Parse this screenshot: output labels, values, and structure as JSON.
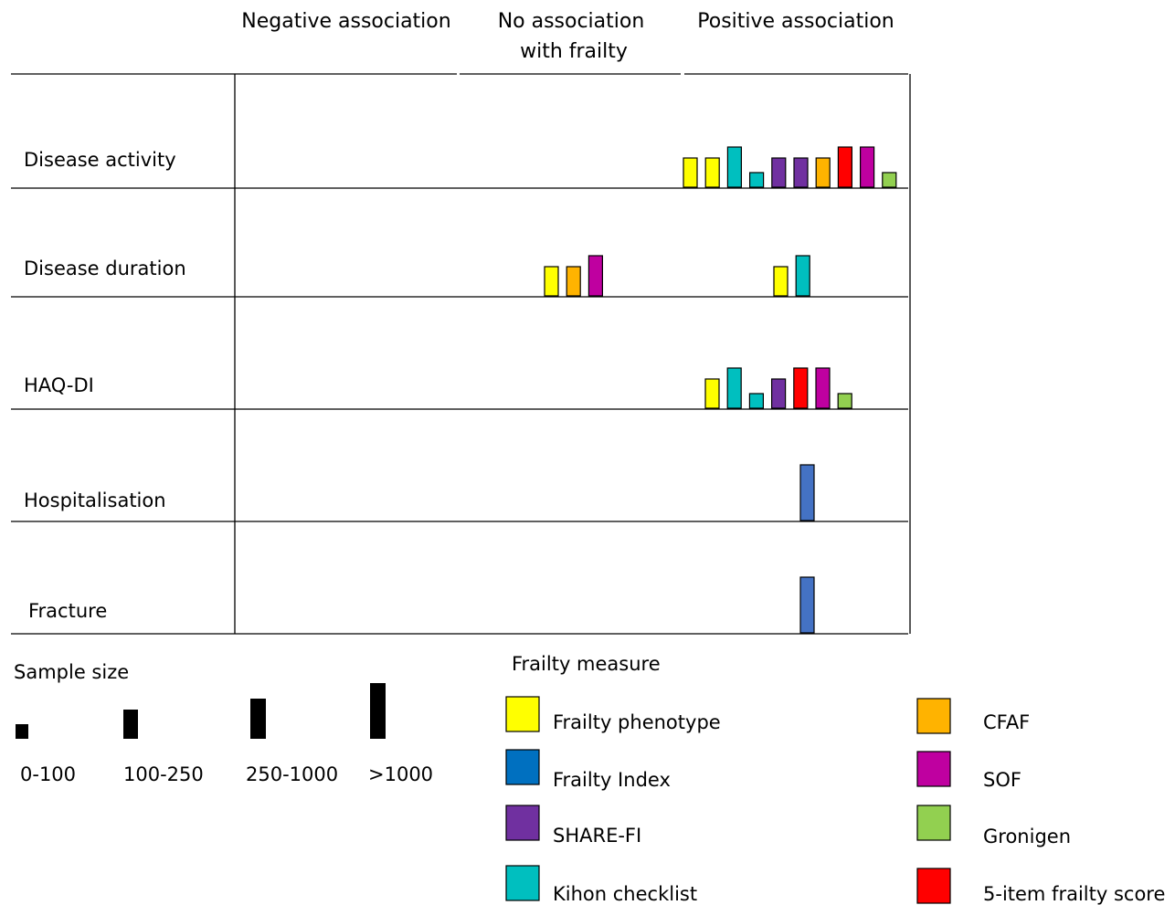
{
  "headers": {
    "negative": "Negative association",
    "none_line1": "No association",
    "none_line2": "with frailty",
    "positive": "Positive association"
  },
  "rows": [
    {
      "label": "Disease activity",
      "bars": [
        {
          "col": "positive",
          "measure": "frailty_phenotype",
          "size": "100-250"
        },
        {
          "col": "positive",
          "measure": "frailty_phenotype",
          "size": "100-250"
        },
        {
          "col": "positive",
          "measure": "kihon",
          "size": "250-1000"
        },
        {
          "col": "positive",
          "measure": "kihon",
          "size": "0-100"
        },
        {
          "col": "positive",
          "measure": "share_fi",
          "size": "100-250"
        },
        {
          "col": "positive",
          "measure": "share_fi",
          "size": "100-250"
        },
        {
          "col": "positive",
          "measure": "cfaf",
          "size": "100-250"
        },
        {
          "col": "positive",
          "measure": "five_item",
          "size": "250-1000"
        },
        {
          "col": "positive",
          "measure": "sof",
          "size": "250-1000"
        },
        {
          "col": "positive",
          "measure": "gronigen",
          "size": "0-100"
        }
      ]
    },
    {
      "label": "Disease duration",
      "bars": [
        {
          "col": "none",
          "measure": "frailty_phenotype",
          "size": "100-250"
        },
        {
          "col": "none",
          "measure": "cfaf",
          "size": "100-250"
        },
        {
          "col": "none",
          "measure": "sof",
          "size": "250-1000"
        },
        {
          "col": "positive",
          "measure": "frailty_phenotype",
          "size": "100-250"
        },
        {
          "col": "positive",
          "measure": "kihon",
          "size": "250-1000"
        }
      ]
    },
    {
      "label": "HAQ-DI",
      "bars": [
        {
          "col": "positive",
          "measure": "frailty_phenotype",
          "size": "100-250"
        },
        {
          "col": "positive",
          "measure": "kihon",
          "size": "250-1000"
        },
        {
          "col": "positive",
          "measure": "kihon",
          "size": "0-100"
        },
        {
          "col": "positive",
          "measure": "share_fi",
          "size": "100-250"
        },
        {
          "col": "positive",
          "measure": "five_item",
          "size": "250-1000"
        },
        {
          "col": "positive",
          "measure": "sof",
          "size": "250-1000"
        },
        {
          "col": "positive",
          "measure": "gronigen",
          "size": "0-100"
        }
      ]
    },
    {
      "label": "Hospitalisation",
      "bars": [
        {
          "col": "positive",
          "measure": "frailty_index",
          "size": ">1000"
        }
      ]
    },
    {
      "label": "Fracture",
      "bars": [
        {
          "col": "positive",
          "measure": "frailty_index",
          "size": ">1000"
        }
      ]
    }
  ],
  "sample_size": {
    "title": "Sample size",
    "items": [
      {
        "label": "0-100",
        "size": "0-100"
      },
      {
        "label": "100-250",
        "size": "100-250"
      },
      {
        "label": "250-1000",
        "size": "250-1000"
      },
      {
        "label": ">1000",
        "size": ">1000"
      }
    ]
  },
  "frailty_measure": {
    "title": "Frailty measure",
    "items": [
      {
        "key": "frailty_phenotype",
        "label": "Frailty phenotype",
        "color": "#FFFF00"
      },
      {
        "key": "frailty_index",
        "label": "Frailty Index",
        "color": "#0070C0"
      },
      {
        "key": "share_fi",
        "label": "SHARE-FI",
        "color": "#7030A0"
      },
      {
        "key": "kihon",
        "label": "Kihon checklist",
        "color": "#00BFBF"
      },
      {
        "key": "cfaf",
        "label": "CFAF",
        "color": "#FFB300"
      },
      {
        "key": "sof",
        "label": "SOF",
        "color": "#BF00A0"
      },
      {
        "key": "gronigen",
        "label": "Gronigen",
        "color": "#92D050"
      },
      {
        "key": "five_item",
        "label": "5-item frailty score",
        "color": "#FF0000"
      }
    ]
  },
  "bar_colors_override": {
    "frailty_index_bar": "#4472C4"
  }
}
